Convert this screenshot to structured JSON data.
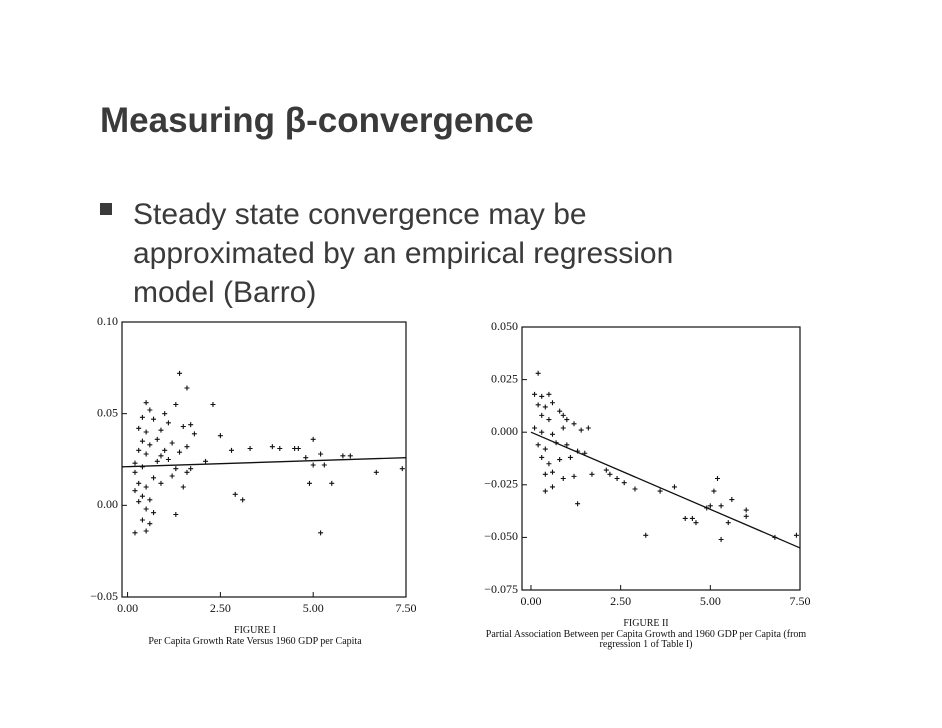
{
  "title": "Measuring β-convergence",
  "bullet": [
    "Steady state convergence may be",
    "approximated by an empirical regression",
    "model (Barro)"
  ],
  "chart_data": [
    {
      "type": "scatter",
      "figure_label": "FIGURE I",
      "caption": [
        "Per Capita Growth Rate Versus 1960 GDP per Capita"
      ],
      "xlim": [
        -0.15,
        7.5
      ],
      "ylim": [
        -0.05,
        0.1
      ],
      "xticks": [
        {
          "value": 0,
          "label": "0.00"
        },
        {
          "value": 2.5,
          "label": "2.50"
        },
        {
          "value": 5,
          "label": "5.00"
        },
        {
          "value": 7.5,
          "label": "7.50"
        }
      ],
      "yticks": [
        {
          "value": 0.1,
          "label": "0.10"
        },
        0.05,
        {
          "value": 0,
          "label": "0.00"
        },
        {
          "value": -0.05,
          "label": "−0.05"
        }
      ],
      "x": [
        1.4,
        1.6,
        0.5,
        0.6,
        1.3,
        2.3,
        0.4,
        0.7,
        1.0,
        0.3,
        0.5,
        0.9,
        1.1,
        1.5,
        1.7,
        0.4,
        0.6,
        0.8,
        1.2,
        1.8,
        2.5,
        0.3,
        0.5,
        0.9,
        1.0,
        1.4,
        1.6,
        2.8,
        3.3,
        0.2,
        0.4,
        0.8,
        1.1,
        1.3,
        2.1,
        3.9,
        4.1,
        4.5,
        4.6,
        5.0,
        5.2,
        4.8,
        5.0,
        5.3,
        5.8,
        6.0,
        6.7,
        7.4,
        4.9,
        5.5,
        0.2,
        0.3,
        0.5,
        0.7,
        1.2,
        1.6,
        0.2,
        0.4,
        0.6,
        0.3,
        0.5,
        0.7,
        0.4,
        0.6,
        0.5,
        0.2,
        1.3,
        1.5,
        0.9,
        2.9,
        3.1,
        5.2,
        1.7
      ],
      "y": [
        0.072,
        0.064,
        0.056,
        0.052,
        0.055,
        0.055,
        0.048,
        0.047,
        0.05,
        0.042,
        0.04,
        0.041,
        0.045,
        0.043,
        0.044,
        0.035,
        0.033,
        0.036,
        0.034,
        0.039,
        0.038,
        0.03,
        0.028,
        0.027,
        0.03,
        0.029,
        0.032,
        0.03,
        0.031,
        0.023,
        0.021,
        0.024,
        0.025,
        0.02,
        0.024,
        0.032,
        0.031,
        0.031,
        0.031,
        0.036,
        0.028,
        0.026,
        0.022,
        0.022,
        0.027,
        0.027,
        0.018,
        0.02,
        0.012,
        0.012,
        0.018,
        0.012,
        0.01,
        0.015,
        0.016,
        0.018,
        0.008,
        0.005,
        0.003,
        0.002,
        -0.002,
        -0.004,
        -0.008,
        -0.01,
        -0.014,
        -0.015,
        -0.005,
        0.01,
        0.012,
        0.006,
        0.003,
        -0.015,
        0.02
      ],
      "fit_line": {
        "x": [
          -0.15,
          7.5
        ],
        "y": [
          0.021,
          0.026
        ]
      },
      "color": "#111111"
    },
    {
      "type": "scatter",
      "figure_label": "FIGURE II",
      "caption": [
        "Partial Association Between per Capita Growth and 1960 GDP per Capita (from",
        "regression 1 of Table I)"
      ],
      "xlim": [
        -0.25,
        7.5
      ],
      "ylim": [
        -0.075,
        0.05
      ],
      "xticks": [
        {
          "value": 0,
          "label": "0.00"
        },
        {
          "value": 2.5,
          "label": "2.50"
        },
        {
          "value": 5,
          "label": "5.00"
        },
        {
          "value": 7.5,
          "label": "7.50"
        }
      ],
      "yticks": [
        {
          "value": 0.05,
          "label": "0.050"
        },
        0.025,
        {
          "value": 0,
          "label": "0.000"
        },
        {
          "value": -0.025,
          "label": "−0.025"
        },
        {
          "value": -0.05,
          "label": "−0.050"
        },
        {
          "value": -0.075,
          "label": "−0.075"
        }
      ],
      "x": [
        0.2,
        0.1,
        0.3,
        0.5,
        0.2,
        0.4,
        0.6,
        0.3,
        0.5,
        0.8,
        0.9,
        1.0,
        0.1,
        0.3,
        0.6,
        0.9,
        1.2,
        1.4,
        1.6,
        0.2,
        0.4,
        0.7,
        1.0,
        1.3,
        0.3,
        0.5,
        0.8,
        1.1,
        1.5,
        0.4,
        0.6,
        0.9,
        1.2,
        1.7,
        0.4,
        0.6,
        1.3,
        2.1,
        2.4,
        2.6,
        2.9,
        3.2,
        3.6,
        4.0,
        4.3,
        4.5,
        4.9,
        5.0,
        5.2,
        5.1,
        5.3,
        5.5,
        5.3,
        5.6,
        6.0,
        6.0,
        6.8,
        7.4,
        4.6,
        2.2
      ],
      "y": [
        0.028,
        0.018,
        0.017,
        0.018,
        0.013,
        0.012,
        0.014,
        0.008,
        0.006,
        0.01,
        0.008,
        0.006,
        0.002,
        0.0,
        -0.001,
        0.002,
        0.004,
        0.001,
        0.002,
        -0.006,
        -0.008,
        -0.005,
        -0.006,
        -0.009,
        -0.012,
        -0.015,
        -0.013,
        -0.012,
        -0.01,
        -0.02,
        -0.019,
        -0.022,
        -0.021,
        -0.02,
        -0.028,
        -0.026,
        -0.034,
        -0.018,
        -0.022,
        -0.024,
        -0.027,
        -0.049,
        -0.028,
        -0.026,
        -0.041,
        -0.041,
        -0.036,
        -0.035,
        -0.022,
        -0.028,
        -0.035,
        -0.043,
        -0.051,
        -0.032,
        -0.037,
        -0.04,
        -0.05,
        -0.049,
        -0.043,
        -0.02
      ],
      "fit_line": {
        "x": [
          0,
          7.5
        ],
        "y": [
          0.0,
          -0.055
        ]
      },
      "color": "#111111"
    }
  ]
}
